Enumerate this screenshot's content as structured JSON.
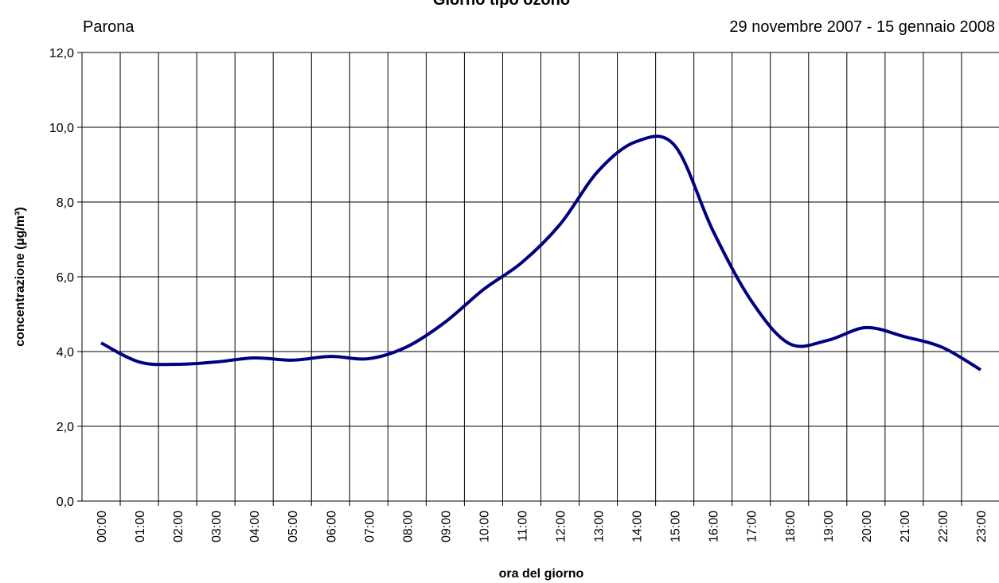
{
  "chart_data": {
    "type": "line",
    "title": "Giorno tipo ozono",
    "subtitle": "Parona",
    "period": "29 novembre 2007 - 15 gennaio 2008",
    "x_label": "ora del giorno",
    "y_label": "concentrazione (µg/m³)",
    "categories": [
      "00:00",
      "01:00",
      "02:00",
      "03:00",
      "04:00",
      "05:00",
      "06:00",
      "07:00",
      "08:00",
      "09:00",
      "10:00",
      "11:00",
      "12:00",
      "13:00",
      "14:00",
      "15:00",
      "16:00",
      "17:00",
      "18:00",
      "19:00",
      "20:00",
      "21:00",
      "22:00",
      "23:00"
    ],
    "series": [
      {
        "name": "ozono",
        "color": "#000080",
        "values": [
          4.23,
          3.72,
          3.66,
          3.72,
          3.83,
          3.77,
          3.87,
          3.81,
          4.13,
          4.79,
          5.66,
          6.38,
          7.4,
          8.83,
          9.62,
          9.51,
          7.23,
          5.36,
          4.21,
          4.3,
          4.64,
          4.4,
          4.11,
          3.51
        ]
      }
    ],
    "ylim": [
      0,
      12
    ],
    "yticks": [
      {
        "value": 0,
        "label": "0,0"
      },
      {
        "value": 2,
        "label": "2,0"
      },
      {
        "value": 4,
        "label": "4,0"
      },
      {
        "value": 6,
        "label": "6,0"
      },
      {
        "value": 8,
        "label": "8,0"
      },
      {
        "value": 10,
        "label": "10,0"
      },
      {
        "value": 12,
        "label": "12,0"
      }
    ],
    "grid": true
  }
}
